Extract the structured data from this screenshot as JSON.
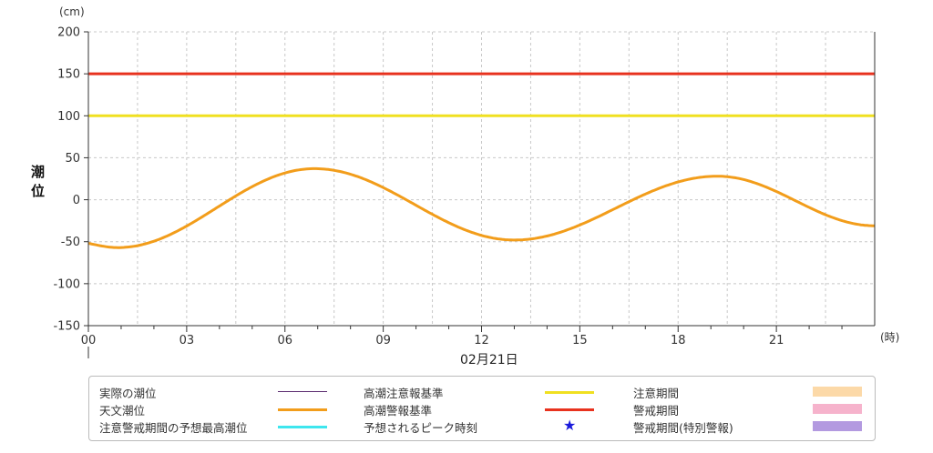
{
  "chart_data": {
    "type": "line",
    "ylabel": "潮位",
    "yunit": "(cm)",
    "xunit": "(時)",
    "date": "02月21日",
    "ylim": [
      -150,
      200
    ],
    "yticks": [
      -150,
      -100,
      -50,
      0,
      50,
      100,
      150,
      200
    ],
    "xlim": [
      0,
      24
    ],
    "xticks": [
      0,
      3,
      6,
      9,
      12,
      15,
      18,
      21
    ],
    "xtick_labels": [
      "00",
      "03",
      "06",
      "09",
      "12",
      "15",
      "18",
      "21"
    ],
    "grid": true,
    "series": [
      {
        "name": "高潮警報基準",
        "type": "hline",
        "value": 150,
        "color": "#e8321e"
      },
      {
        "name": "高潮注意報基準",
        "type": "hline",
        "value": 100,
        "color": "#f0e020"
      },
      {
        "name": "天文潮位",
        "type": "curve",
        "color": "#f29d1b",
        "x": [
          -0.5,
          0.9,
          6.9,
          13.0,
          19.2,
          24.0
        ],
        "y": [
          -50,
          -57,
          37,
          -48,
          28,
          -31
        ]
      }
    ]
  },
  "legend": {
    "items": [
      {
        "label": "実際の潮位",
        "kind": "line",
        "color": "#5a2a6e"
      },
      {
        "label": "天文潮位",
        "kind": "line",
        "color": "#f29d1b"
      },
      {
        "label": "注意警戒期間の予想最高潮位",
        "kind": "line",
        "color": "#3ee6ee"
      },
      {
        "label": "高潮注意報基準",
        "kind": "line",
        "color": "#f0e020"
      },
      {
        "label": "高潮警報基準",
        "kind": "line",
        "color": "#e8321e"
      },
      {
        "label": "予想されるピーク時刻",
        "kind": "star",
        "color": "#1a1adb"
      },
      {
        "label": "注意期間",
        "kind": "band",
        "color": "#fcd9a8"
      },
      {
        "label": "警戒期間",
        "kind": "band",
        "color": "#f6b3cc"
      },
      {
        "label": "警戒期間(特別警報)",
        "kind": "band",
        "color": "#b39ae0"
      }
    ]
  }
}
